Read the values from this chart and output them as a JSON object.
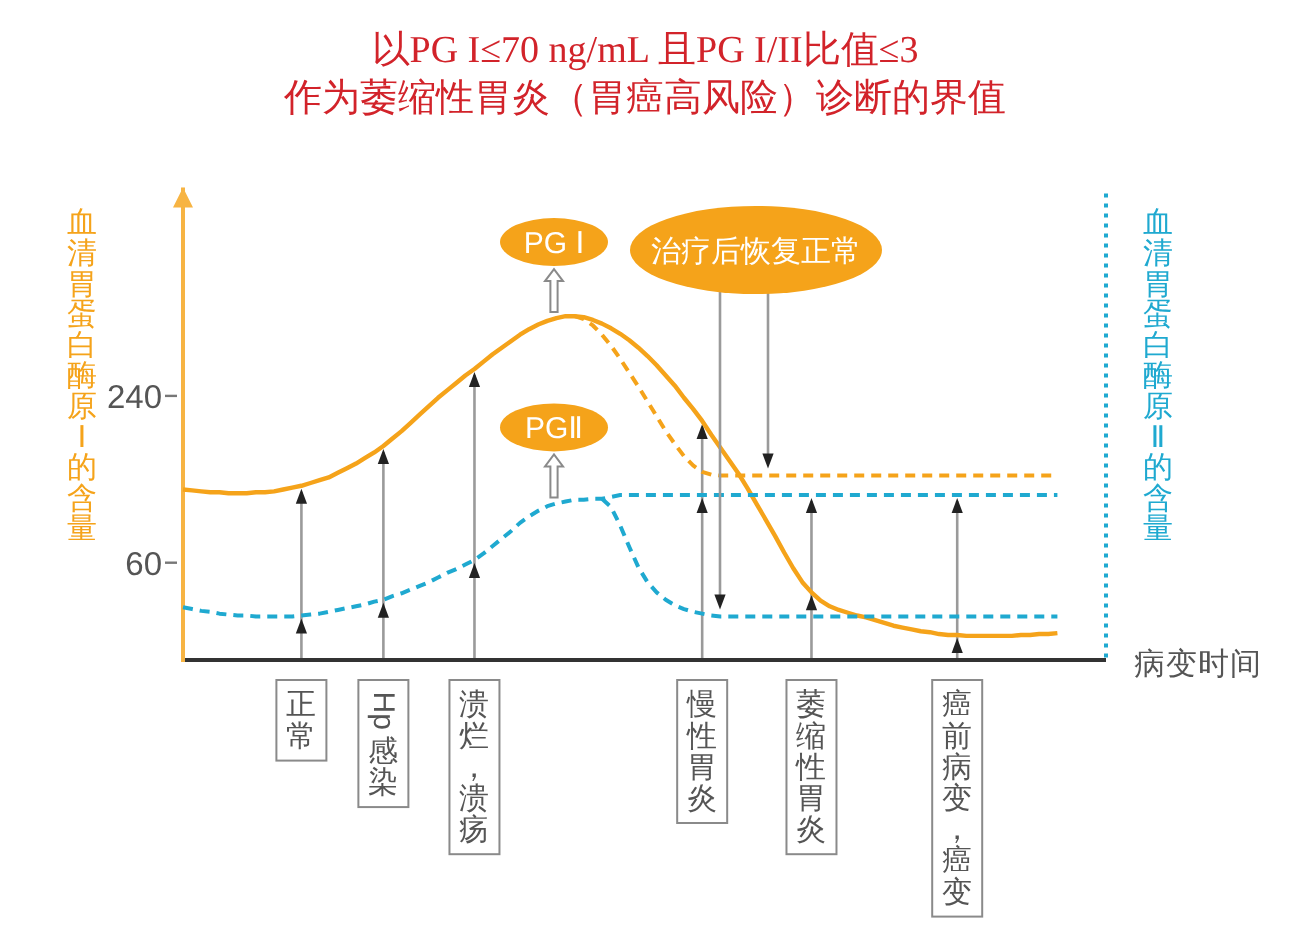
{
  "chart_data": {
    "type": "line",
    "title": "以PG I≤70 ng/mL 且PG I/II比值≤3",
    "subtitle": "作为萎缩性胃炎（胃癌高风险）诊断的界值",
    "ylabel": "血清胃蛋白酶原Ⅰ的含量",
    "y2label": "血清胃蛋白酶原Ⅱ的含量",
    "xlabel": "病变时间",
    "categories": [
      null,
      null,
      null,
      null,
      null,
      null,
      null,
      null,
      null,
      null,
      null,
      null,
      null,
      "正常",
      null,
      null,
      null,
      null,
      null,
      null,
      null,
      null,
      "Hp感染",
      null,
      null,
      null,
      null,
      null,
      null,
      null,
      null,
      null,
      "溃烂，溃疡",
      null,
      null,
      null,
      null,
      null,
      null,
      null,
      null,
      null,
      null,
      null,
      null,
      null,
      null,
      null,
      null,
      null,
      null,
      null,
      null,
      null,
      null,
      null,
      null,
      "慢性胃炎",
      null,
      null,
      null,
      null,
      null,
      null,
      null,
      null,
      null,
      null,
      null,
      "萎缩性胃炎",
      null,
      null,
      null,
      null,
      null,
      null,
      null,
      null,
      null,
      null,
      null,
      null,
      null,
      null,
      null,
      "癌前病变，癌变",
      null,
      null,
      null,
      null,
      null,
      null,
      null,
      null,
      null,
      null,
      null
    ],
    "series": [
      {
        "name": "PG Ⅰ",
        "color": "#f5a31a",
        "line_style": "solid",
        "values": [
          139,
          138,
          137,
          136,
          136,
          135,
          135,
          135,
          136,
          136,
          137,
          139,
          141,
          143,
          146,
          149,
          152,
          157,
          162,
          167,
          173,
          179,
          186,
          194,
          202,
          211,
          220,
          229,
          238,
          246,
          254,
          262,
          269,
          277,
          285,
          292,
          299,
          306,
          312,
          317,
          321,
          324,
          326,
          326,
          325,
          322,
          318,
          313,
          307,
          300,
          292,
          283,
          273,
          262,
          251,
          238,
          226,
          213,
          198,
          184,
          170,
          156,
          140,
          123,
          106,
          89,
          71,
          54,
          39,
          28,
          19,
          13,
          9,
          6,
          3,
          1,
          -2,
          -5,
          -8,
          -10,
          -12,
          -14,
          -15,
          -17,
          -18,
          -18,
          -19,
          -19,
          -19,
          -19,
          -19,
          -19,
          -18,
          -18,
          -17,
          -17,
          -16
        ]
      },
      {
        "name": "PGⅡ",
        "color": "#1fa9d0",
        "line_style": "dashed",
        "values": [
          12,
          10,
          8,
          7,
          5,
          4,
          3,
          3,
          2,
          2,
          2,
          2,
          2,
          3,
          4,
          5,
          7,
          9,
          11,
          13,
          15,
          18,
          20,
          24,
          27,
          31,
          35,
          39,
          44,
          49,
          53,
          58,
          63,
          70,
          78,
          86,
          94,
          103,
          110,
          116,
          121,
          124,
          126,
          128,
          128,
          129,
          129,
          131,
          133,
          133,
          133,
          133,
          133,
          133,
          133,
          133,
          133,
          133,
          133,
          133,
          133,
          133,
          133,
          133,
          133,
          133,
          133,
          133,
          133,
          133,
          133,
          133,
          133,
          133,
          133,
          133,
          133,
          133,
          133,
          133,
          133,
          133,
          133,
          133,
          133,
          133,
          133,
          133,
          133,
          133,
          133,
          133,
          133,
          133,
          133,
          133,
          133
        ]
      },
      {
        "color": "#f5a31a",
        "line_style": "dashed",
        "values": [
          null,
          null,
          null,
          null,
          null,
          null,
          null,
          null,
          null,
          null,
          null,
          null,
          null,
          null,
          null,
          null,
          null,
          null,
          null,
          null,
          null,
          null,
          null,
          null,
          null,
          null,
          null,
          null,
          null,
          null,
          null,
          null,
          null,
          null,
          null,
          null,
          null,
          null,
          null,
          null,
          null,
          null,
          null,
          326,
          323,
          316,
          306,
          294,
          280,
          265,
          250,
          234,
          218,
          202,
          188,
          175,
          165,
          158,
          155,
          154,
          154,
          154,
          154,
          154,
          154,
          154,
          154,
          154,
          154,
          154,
          154,
          154,
          154,
          154,
          154,
          154,
          154,
          154,
          154,
          154,
          154,
          154,
          154,
          154,
          154,
          154,
          154,
          154,
          154,
          154,
          154,
          154,
          154,
          154,
          154,
          154,
          154
        ]
      },
      {
        "color": "#1fa9d0",
        "line_style": "dashed",
        "values": [
          null,
          null,
          null,
          null,
          null,
          null,
          null,
          null,
          null,
          null,
          null,
          null,
          null,
          null,
          null,
          null,
          null,
          null,
          null,
          null,
          null,
          null,
          null,
          null,
          null,
          null,
          null,
          null,
          null,
          null,
          null,
          null,
          null,
          null,
          null,
          null,
          null,
          null,
          null,
          null,
          null,
          null,
          null,
          null,
          null,
          null,
          129,
          120,
          100,
          77,
          55,
          39,
          28,
          20,
          14,
          10,
          7,
          5,
          3,
          2,
          2,
          2,
          2,
          2,
          2,
          2,
          2,
          2,
          2,
          2,
          2,
          2,
          2,
          2,
          2,
          2,
          2,
          2,
          2,
          2,
          2,
          2,
          2,
          2,
          2,
          2,
          2,
          2,
          2,
          2,
          2,
          2,
          2,
          2,
          2,
          2,
          2
        ]
      }
    ],
    "ylim": [
      -45,
      465
    ],
    "yticks": [
      60,
      240
    ],
    "annotations": [
      "治疗后恢复正常"
    ]
  }
}
